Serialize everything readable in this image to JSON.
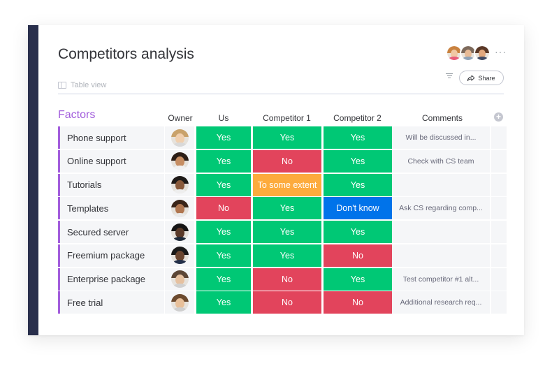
{
  "board": {
    "title": "Competitors analysis",
    "view_label": "Table view",
    "share_label": "Share",
    "more_label": "···"
  },
  "top_avatars": [
    {
      "hair": "#c9823f",
      "skin": "#f0c8a4",
      "body": "#e85c7a"
    },
    {
      "hair": "#7d6a5c",
      "skin": "#e8bb96",
      "body": "#8fa3b8"
    },
    {
      "hair": "#5a3826",
      "skin": "#e2a87d",
      "body": "#3f4a63"
    }
  ],
  "group": {
    "title": "Factors",
    "color": "#a25ddc"
  },
  "columns": [
    "Owner",
    "Us",
    "Competitor 1",
    "Competitor 2",
    "Comments"
  ],
  "status_colors": {
    "Yes": "#00c875",
    "No": "#e2445c",
    "To some extent": "#fdab3d",
    "Don't know": "#0073ea"
  },
  "rows": [
    {
      "factor": "Phone support",
      "owner": {
        "hair": "#c9a26b",
        "skin": "#f0cfae",
        "body": "#d9d9d9"
      },
      "us": "Yes",
      "comp1": "Yes",
      "comp2": "Yes",
      "comment": "Will be discussed in..."
    },
    {
      "factor": "Online support",
      "owner": {
        "hair": "#2b1d16",
        "skin": "#c68d62",
        "body": "#f1f1f1"
      },
      "us": "Yes",
      "comp1": "No",
      "comp2": "Yes",
      "comment": "Check with CS team"
    },
    {
      "factor": "Tutorials",
      "owner": {
        "hair": "#1e1a18",
        "skin": "#8a5a3b",
        "body": "#eeeeee"
      },
      "us": "Yes",
      "comp1": "To some extent",
      "comp2": "Yes",
      "comment": ""
    },
    {
      "factor": "Templates",
      "owner": {
        "hair": "#3a2418",
        "skin": "#b07650",
        "body": "#e9e9e9"
      },
      "us": "No",
      "comp1": "Yes",
      "comp2": "Don't know",
      "comment": "Ask CS regarding comp..."
    },
    {
      "factor": "Secured server",
      "owner": {
        "hair": "#151515",
        "skin": "#5a3a29",
        "body": "#1e2a3a"
      },
      "us": "Yes",
      "comp1": "Yes",
      "comp2": "Yes",
      "comment": ""
    },
    {
      "factor": "Freemium package",
      "owner": {
        "hair": "#1a1a1a",
        "skin": "#6b4630",
        "body": "#23304a"
      },
      "us": "Yes",
      "comp1": "Yes",
      "comp2": "No",
      "comment": ""
    },
    {
      "factor": "Enterprise package",
      "owner": {
        "hair": "#5c4636",
        "skin": "#e6c1a0",
        "body": "#d0d0d0"
      },
      "us": "Yes",
      "comp1": "No",
      "comp2": "Yes",
      "comment": "Test competitor #1 alt..."
    },
    {
      "factor": "Free trial",
      "owner": {
        "hair": "#6b4a2f",
        "skin": "#e8c09a",
        "body": "#cfcfcf"
      },
      "us": "Yes",
      "comp1": "No",
      "comp2": "No",
      "comment": "Additional research req..."
    }
  ]
}
